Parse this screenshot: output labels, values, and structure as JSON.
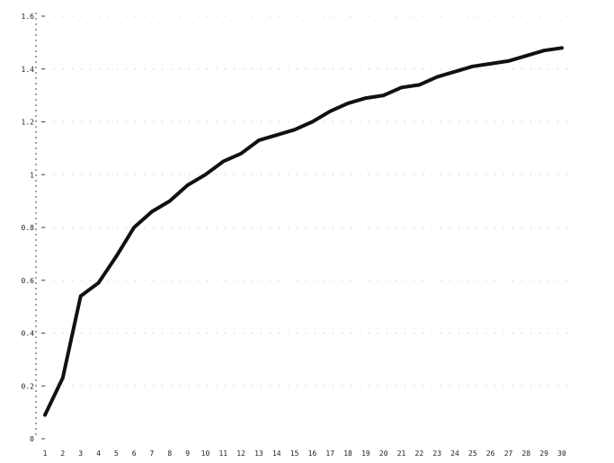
{
  "chart_data": {
    "type": "line",
    "x": [
      1,
      2,
      3,
      4,
      5,
      6,
      7,
      8,
      9,
      10,
      11,
      12,
      13,
      14,
      15,
      16,
      17,
      18,
      19,
      20,
      21,
      22,
      23,
      24,
      25,
      26,
      27,
      28,
      29,
      30
    ],
    "series": [
      {
        "values": [
          0.09,
          0.23,
          0.54,
          0.59,
          0.69,
          0.8,
          0.86,
          0.9,
          0.96,
          1.0,
          1.05,
          1.08,
          1.13,
          1.15,
          1.17,
          1.2,
          1.24,
          1.27,
          1.29,
          1.3,
          1.33,
          1.34,
          1.37,
          1.39,
          1.41,
          1.42,
          1.43,
          1.45,
          1.47,
          1.48
        ],
        "color": "#111111"
      }
    ],
    "x_ticks": [
      "1",
      "2",
      "3",
      "4",
      "5",
      "6",
      "7",
      "8",
      "9",
      "10",
      "11",
      "12",
      "13",
      "14",
      "15",
      "16",
      "17",
      "18",
      "19",
      "20",
      "21",
      "22",
      "23",
      "24",
      "25",
      "26",
      "27",
      "28",
      "29",
      "30"
    ],
    "y_ticks": [
      {
        "value": 0,
        "label": "0"
      },
      {
        "value": 0.2,
        "label": "0.2"
      },
      {
        "value": 0.4,
        "label": "0.4"
      },
      {
        "value": 0.6,
        "label": "0.6"
      },
      {
        "value": 0.8,
        "label": "0.8"
      },
      {
        "value": 1.0,
        "label": "1"
      },
      {
        "value": 1.2,
        "label": "1.2"
      },
      {
        "value": 1.4,
        "label": "1.4"
      },
      {
        "value": 1.6,
        "label": "1.6"
      }
    ],
    "xlim": [
      1,
      30
    ],
    "ylim": [
      0,
      1.6
    ],
    "grid": true,
    "title": "",
    "xlabel": "",
    "ylabel": ""
  }
}
